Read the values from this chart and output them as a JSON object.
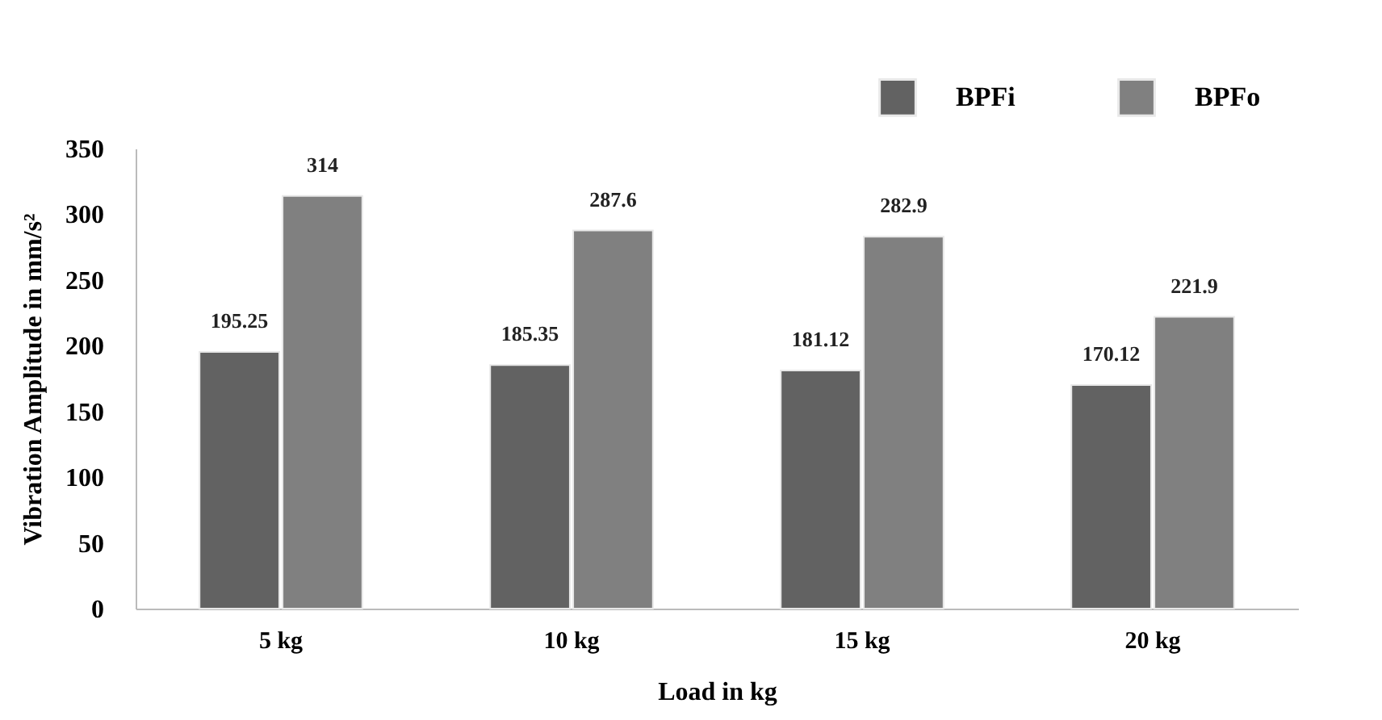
{
  "chart_data": {
    "type": "bar",
    "xlabel": "Load in kg",
    "ylabel": "Vibration Amplitude in mm/s²",
    "categories": [
      "5 kg",
      "10 kg",
      "15 kg",
      "20 kg"
    ],
    "series": [
      {
        "name": "BPFi",
        "color": "#626262",
        "values": [
          195.25,
          185.35,
          181.12,
          170.12
        ]
      },
      {
        "name": "BPFo",
        "color": "#808080",
        "values": [
          314,
          287.6,
          282.9,
          221.9
        ]
      }
    ],
    "ylim": [
      0,
      350
    ],
    "yticks": [
      0,
      50,
      100,
      150,
      200,
      250,
      300,
      350
    ],
    "grid": false,
    "legend": "top right",
    "data_labels": true
  }
}
